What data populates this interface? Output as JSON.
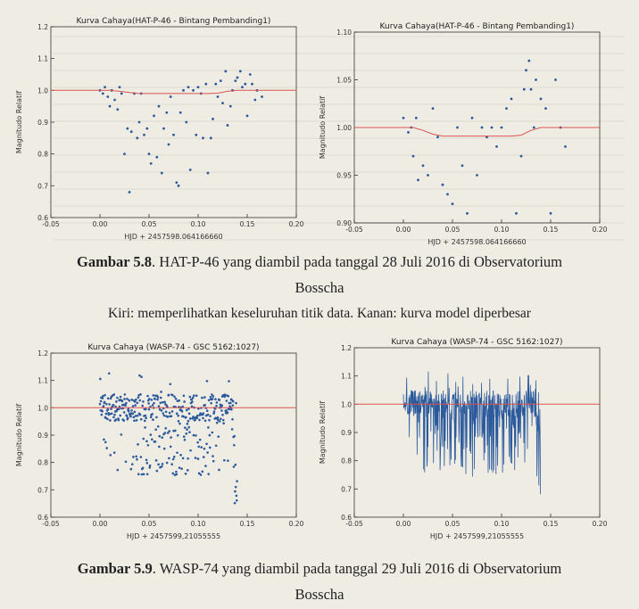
{
  "captions": [
    {
      "label": "Gambar 5.8",
      "text": ". HAT-P-46 yang diambil pada tanggal 28 Juli 2016 di Observatorium",
      "text2": "Bosscha"
    },
    {
      "label": "Gambar 5.9",
      "text": ". WASP-74 yang diambil pada tanggal 29 Juli 2016 di Observatorium",
      "text2": "Bosscha"
    }
  ],
  "note": "Kiri: memperlihatkan keseluruhan titik data. Kanan: kurva model diperbesar",
  "colors": {
    "points": "#2a5a9c",
    "model": "#d9534f",
    "axis": "#333333"
  },
  "chart_data": [
    {
      "type": "scatter",
      "title": "Kurva Cahaya(HAT-P-46 - Bintang Pembanding1)",
      "xlabel": "HJD + 2457598.064166660",
      "ylabel": "Magnitudo Relatif",
      "xlim": [
        -0.05,
        0.2
      ],
      "ylim": [
        0.6,
        1.2
      ],
      "xticks": [
        "-0.05",
        "0.00",
        "0.05",
        "0.10",
        "0.15",
        "0.20"
      ],
      "yticks": [
        "0.6",
        "0.7",
        "0.8",
        "0.9",
        "1.0",
        "1.1",
        "1.2"
      ],
      "series": [
        {
          "type": "scatter",
          "x": [
            0.0,
            0.003,
            0.005,
            0.008,
            0.01,
            0.012,
            0.015,
            0.018,
            0.02,
            0.022,
            0.025,
            0.028,
            0.03,
            0.032,
            0.035,
            0.038,
            0.04,
            0.042,
            0.045,
            0.048,
            0.05,
            0.052,
            0.055,
            0.058,
            0.06,
            0.063,
            0.065,
            0.068,
            0.07,
            0.072,
            0.075,
            0.078,
            0.08,
            0.082,
            0.085,
            0.088,
            0.09,
            0.092,
            0.095,
            0.098,
            0.1,
            0.103,
            0.105,
            0.108,
            0.11,
            0.113,
            0.115,
            0.118,
            0.12,
            0.123,
            0.125,
            0.128,
            0.13,
            0.133,
            0.135,
            0.138,
            0.14,
            0.143,
            0.145,
            0.148,
            0.15,
            0.153,
            0.155,
            0.158,
            0.16,
            0.165
          ],
          "y": [
            1.0,
            0.99,
            1.01,
            0.98,
            0.95,
            1.0,
            0.97,
            0.94,
            1.01,
            0.99,
            0.8,
            0.88,
            0.68,
            0.87,
            0.99,
            0.85,
            0.9,
            0.99,
            0.86,
            0.88,
            0.8,
            0.77,
            0.92,
            0.79,
            0.95,
            0.74,
            0.88,
            0.93,
            0.83,
            0.98,
            0.86,
            0.71,
            0.7,
            0.93,
            1.0,
            0.9,
            1.01,
            0.75,
            1.0,
            0.86,
            1.01,
            0.99,
            0.85,
            1.02,
            0.74,
            0.85,
            0.91,
            1.02,
            0.98,
            1.03,
            0.96,
            1.06,
            0.89,
            0.95,
            1.0,
            1.03,
            1.04,
            1.06,
            1.01,
            1.02,
            0.92,
            1.05,
            1.02,
            0.97,
            1.0,
            0.98
          ]
        },
        {
          "type": "line",
          "x": [
            -0.05,
            0.0,
            0.01,
            0.02,
            0.03,
            0.04,
            0.05,
            0.06,
            0.07,
            0.08,
            0.09,
            0.1,
            0.11,
            0.12,
            0.13,
            0.14,
            0.2
          ],
          "y": [
            1.0,
            1.0,
            1.0,
            0.997,
            0.993,
            0.99,
            0.99,
            0.99,
            0.99,
            0.99,
            0.99,
            0.99,
            0.99,
            0.991,
            0.997,
            1.0,
            1.0
          ]
        }
      ]
    },
    {
      "type": "scatter",
      "title": "Kurva Cahaya(HAT-P-46 - Bintang Pembanding1)",
      "xlabel": "HJD + 2457598.064166660",
      "ylabel": "Magnitudo Relatif",
      "xlim": [
        -0.05,
        0.2
      ],
      "ylim": [
        0.9,
        1.1
      ],
      "xticks": [
        "-0.05",
        "0.00",
        "0.05",
        "0.10",
        "0.15",
        "0.20"
      ],
      "yticks": [
        "0.90",
        "0.95",
        "1.00",
        "1.05",
        "1.10"
      ],
      "series": [
        {
          "type": "scatter",
          "x": [
            0.0,
            0.005,
            0.008,
            0.01,
            0.013,
            0.015,
            0.02,
            0.025,
            0.03,
            0.035,
            0.04,
            0.045,
            0.05,
            0.055,
            0.06,
            0.065,
            0.07,
            0.075,
            0.08,
            0.085,
            0.09,
            0.095,
            0.1,
            0.105,
            0.11,
            0.115,
            0.12,
            0.123,
            0.125,
            0.128,
            0.13,
            0.133,
            0.135,
            0.14,
            0.145,
            0.15,
            0.155,
            0.16,
            0.165
          ],
          "y": [
            1.01,
            0.995,
            1.0,
            0.97,
            1.01,
            0.945,
            0.96,
            0.95,
            1.02,
            0.99,
            0.94,
            0.93,
            0.92,
            1.0,
            0.96,
            0.91,
            1.01,
            0.95,
            1.0,
            0.99,
            1.0,
            0.98,
            1.0,
            1.02,
            1.03,
            0.91,
            0.97,
            1.04,
            1.06,
            1.07,
            1.04,
            1.0,
            1.05,
            1.03,
            1.02,
            0.91,
            1.05,
            1.0,
            0.98
          ]
        },
        {
          "type": "line",
          "x": [
            -0.05,
            0.0,
            0.01,
            0.02,
            0.03,
            0.04,
            0.05,
            0.06,
            0.07,
            0.08,
            0.09,
            0.1,
            0.11,
            0.12,
            0.13,
            0.14,
            0.2
          ],
          "y": [
            1.0,
            1.0,
            1.0,
            0.997,
            0.993,
            0.991,
            0.991,
            0.991,
            0.991,
            0.991,
            0.991,
            0.991,
            0.991,
            0.992,
            0.997,
            1.0,
            1.0
          ]
        }
      ]
    },
    {
      "type": "scatter",
      "title": "Kurva Cahaya (WASP-74 - GSC 5162:1027)",
      "xlabel": "HJD + 2457599,21055555",
      "ylabel": "Magnitudo Relatif",
      "xlim": [
        -0.05,
        0.2
      ],
      "ylim": [
        0.6,
        1.2
      ],
      "xticks": [
        "-0.05",
        "0.00",
        "0.05",
        "0.10",
        "0.15",
        "0.20"
      ],
      "yticks": [
        "0.6",
        "0.7",
        "0.8",
        "0.9",
        "1.0",
        "1.1",
        "1.2"
      ],
      "series": [
        {
          "type": "scatter",
          "x_range": [
            0.0,
            0.14
          ],
          "y_band": [
            0.95,
            1.05
          ],
          "y_low": 0.75,
          "y_high": 1.13,
          "density": 420
        },
        {
          "type": "line",
          "x": [
            -0.05,
            0.2
          ],
          "y": [
            1.0,
            1.0
          ]
        }
      ]
    },
    {
      "type": "line",
      "title": "Kurva Cahaya (WASP-74 - GSC 5162:1027)",
      "xlabel": "HJD + 2457599,21055555",
      "ylabel": "Magnitudo Relatif",
      "xlim": [
        -0.05,
        0.2
      ],
      "ylim": [
        0.6,
        1.2
      ],
      "xticks": [
        "-0.05",
        "0.00",
        "0.05",
        "0.10",
        "0.15",
        "0.20"
      ],
      "yticks": [
        "0.6",
        "0.7",
        "0.8",
        "0.9",
        "1.0",
        "1.1",
        "1.2"
      ],
      "series": [
        {
          "type": "line",
          "x_range": [
            0.0,
            0.14
          ],
          "y_band": [
            0.95,
            1.05
          ],
          "y_low": 0.74,
          "y_high": 1.12,
          "density": 420
        },
        {
          "type": "line",
          "x": [
            -0.05,
            0.2
          ],
          "y": [
            1.0,
            1.0
          ]
        }
      ]
    }
  ]
}
